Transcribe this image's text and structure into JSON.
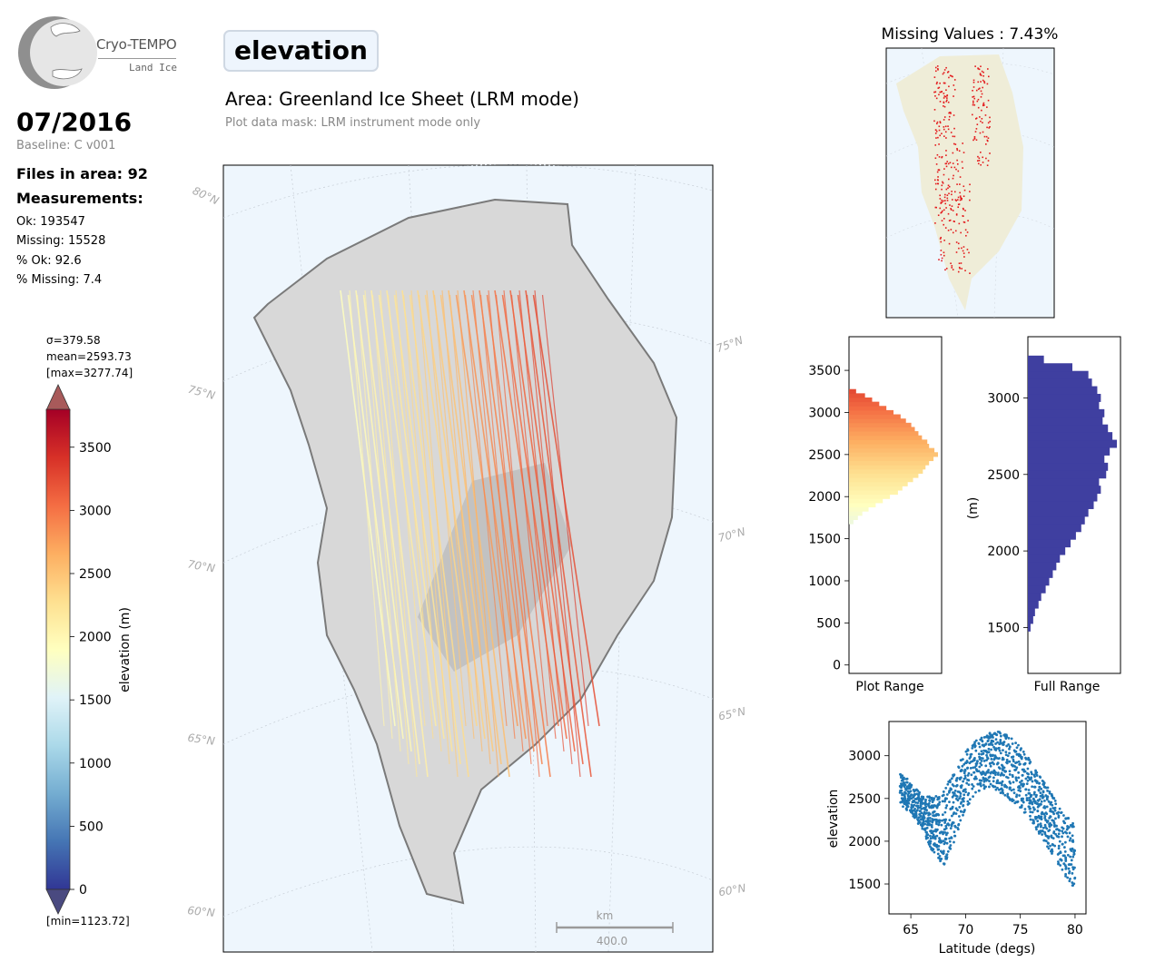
{
  "logo": {
    "name": "Cryo-TEMPO",
    "subtitle": "Land Ice"
  },
  "header": {
    "date": "07/2016",
    "baseline": "Baseline: C v001",
    "files_in_area": "Files in area: 92",
    "measurements_title": "Measurements:",
    "parameter": "elevation",
    "area_title": "Area: Greenland Ice Sheet (LRM mode)",
    "mask_note": "Plot data mask: LRM instrument mode only"
  },
  "stats": {
    "ok": "Ok: 193547",
    "missing": "Missing: 15528",
    "pct_ok": "% Ok: 92.6",
    "pct_missing": "% Missing: 7.4"
  },
  "colorbar": {
    "sigma": "σ=379.58",
    "mean": "mean=2593.73",
    "max": "[max=3277.74]",
    "min": "[min=1123.72]",
    "label": "elevation (m)",
    "ticks": [
      0,
      500,
      1000,
      1500,
      2000,
      2500,
      3000,
      3500
    ],
    "range": [
      0,
      3800
    ],
    "colormap": [
      "#313695",
      "#4575b4",
      "#74add1",
      "#abd9e9",
      "#e0f3f8",
      "#ffffbf",
      "#fee090",
      "#fdae61",
      "#f46d43",
      "#d73027",
      "#a50026"
    ]
  },
  "map": {
    "lat_labels": [
      "80°N",
      "75°N",
      "75°N",
      "70°N",
      "70°N",
      "65°N",
      "65°N",
      "60°N",
      "60°N"
    ],
    "scale_unit": "km",
    "scale_value": "400.0",
    "colors": {
      "ocean": "#eef6fd",
      "land": "#d8d8d8",
      "missing": "#e31a1c",
      "missing_land": "#efedd8"
    }
  },
  "missing_map": {
    "title": "Missing Values : 7.43%"
  },
  "chart_data": [
    {
      "type": "bar",
      "orientation": "horizontal",
      "title": "",
      "xlabel": "Plot Range",
      "ylabel": "",
      "ylim": [
        -100,
        3900
      ],
      "yticks": [
        0,
        500,
        1000,
        1500,
        2000,
        2500,
        3000,
        3500
      ],
      "bin_centers": [
        1700,
        1750,
        1800,
        1850,
        1900,
        1950,
        2000,
        2050,
        2100,
        2150,
        2200,
        2250,
        2300,
        2350,
        2400,
        2450,
        2500,
        2550,
        2600,
        2650,
        2700,
        2750,
        2800,
        2850,
        2900,
        2950,
        3000,
        3050,
        3100,
        3150,
        3200,
        3250
      ],
      "values": [
        0.05,
        0.1,
        0.15,
        0.22,
        0.3,
        0.38,
        0.46,
        0.55,
        0.6,
        0.66,
        0.72,
        0.78,
        0.83,
        0.86,
        0.9,
        0.95,
        1.0,
        0.96,
        0.9,
        0.88,
        0.82,
        0.78,
        0.74,
        0.7,
        0.64,
        0.58,
        0.5,
        0.42,
        0.34,
        0.26,
        0.18,
        0.08
      ]
    },
    {
      "type": "bar",
      "orientation": "horizontal",
      "title": "",
      "xlabel": "Full Range",
      "ylabel": "(m)",
      "ylim": [
        1200,
        3400
      ],
      "yticks": [
        1500,
        2000,
        2500,
        3000
      ],
      "color": "#3f3fa0",
      "bin_centers": [
        1500,
        1550,
        1600,
        1650,
        1700,
        1750,
        1800,
        1850,
        1900,
        1950,
        2000,
        2050,
        2100,
        2150,
        2200,
        2250,
        2300,
        2350,
        2400,
        2450,
        2500,
        2550,
        2600,
        2650,
        2700,
        2750,
        2800,
        2850,
        2900,
        2950,
        3000,
        3050,
        3100,
        3150,
        3200,
        3250
      ],
      "values": [
        0.03,
        0.06,
        0.08,
        0.12,
        0.15,
        0.2,
        0.24,
        0.28,
        0.32,
        0.36,
        0.42,
        0.48,
        0.54,
        0.6,
        0.64,
        0.68,
        0.74,
        0.78,
        0.82,
        0.8,
        0.88,
        0.9,
        0.86,
        0.92,
        1.0,
        0.95,
        0.9,
        0.84,
        0.86,
        0.8,
        0.82,
        0.78,
        0.72,
        0.68,
        0.5,
        0.18
      ]
    },
    {
      "type": "scatter",
      "title": "",
      "xlabel": "Latitude (degs)",
      "ylabel": "elevation",
      "xlim": [
        63,
        81
      ],
      "ylim": [
        1150,
        3400
      ],
      "xticks": [
        65,
        70,
        75,
        80
      ],
      "yticks": [
        1500,
        2000,
        2500,
        3000
      ],
      "color": "#1f77b4",
      "envelope": {
        "lat": [
          64,
          65,
          66,
          67,
          68,
          69,
          70,
          71,
          72,
          73,
          74,
          75,
          76,
          77,
          78,
          79,
          80
        ],
        "upper": [
          2800,
          2650,
          2520,
          2480,
          2560,
          2800,
          3020,
          3150,
          3230,
          3260,
          3200,
          3080,
          2900,
          2700,
          2500,
          2300,
          2150
        ],
        "lower": [
          2400,
          2300,
          2100,
          1800,
          1600,
          1900,
          2300,
          2500,
          2550,
          2500,
          2400,
          2300,
          2150,
          1950,
          1750,
          1500,
          1350
        ]
      }
    }
  ]
}
